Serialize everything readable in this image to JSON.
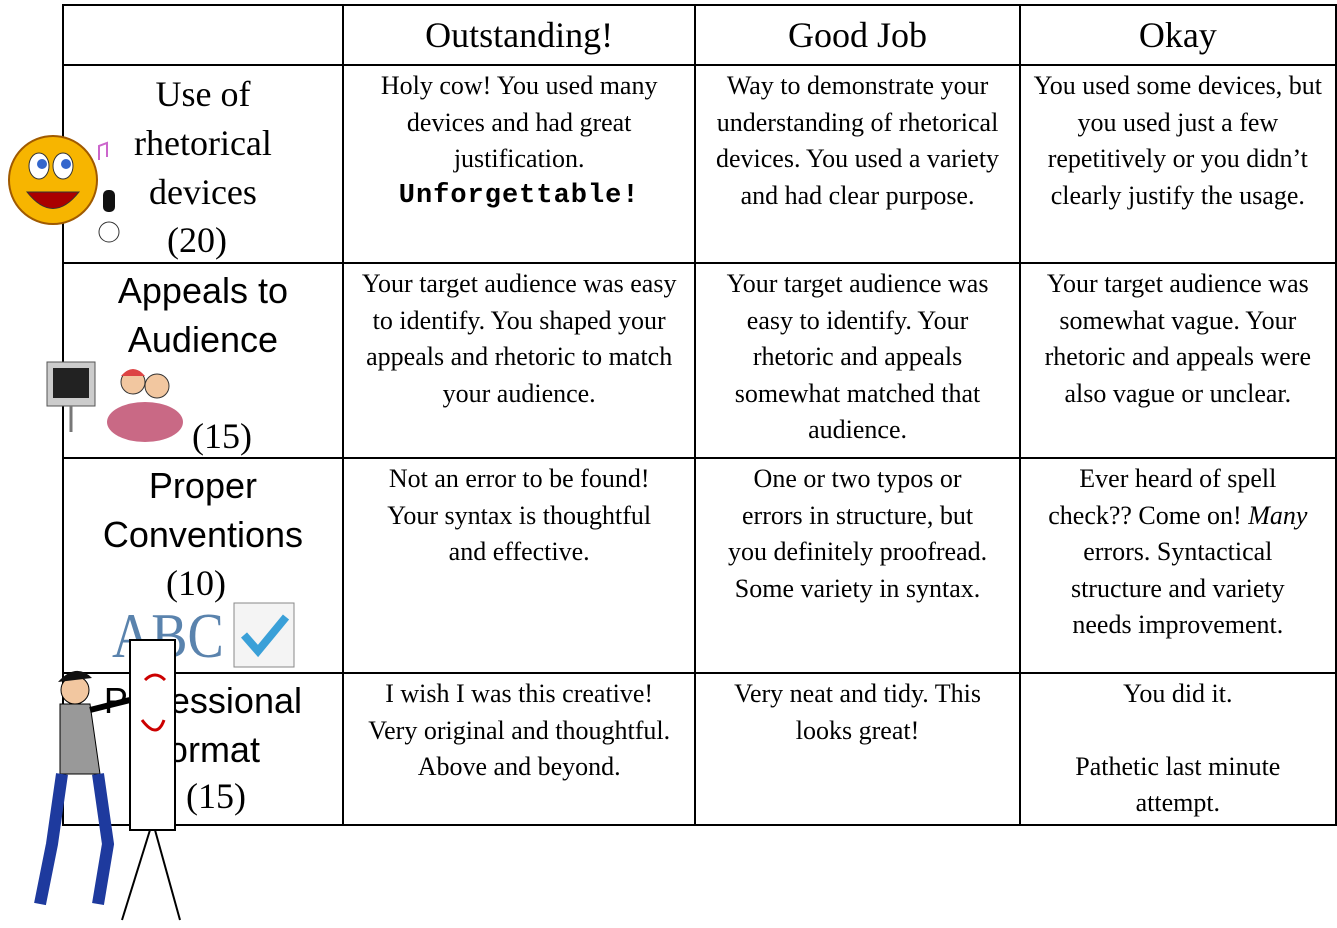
{
  "table": {
    "columns": [
      "Outstanding!",
      "Good Job",
      "Okay"
    ],
    "rows": [
      {
        "label": "Use of rhetorical devices",
        "score": "(20)",
        "cells": [
          [
            "Holy cow! You used many devices and had great justification.",
            "Unforgettable!"
          ],
          [
            "Way to demonstrate your understanding of rhetorical devices. You used a variety and had clear purpose."
          ],
          [
            "You used some devices, but you used just a few repetitively or you didn’t clearly justify the usage."
          ]
        ]
      },
      {
        "label": "Appeals to Audience",
        "score": "(15)",
        "cells": [
          [
            "Your target audience was easy to identify. You shaped your appeals and rhetoric to match your audience."
          ],
          [
            "Your target audience was easy to identify. Your rhetoric and appeals somewhat matched that audience."
          ],
          [
            "Your target audience was somewhat vague. Your rhetoric and appeals were also vague or unclear."
          ]
        ]
      },
      {
        "label": "Proper Conventions",
        "score": "(10)",
        "cells": [
          [
            "Not an error to be found! Your syntax is thoughtful and effective."
          ],
          [
            "One or two typos or errors in structure, but you definitely proofread. Some variety in syntax."
          ],
          [
            "Ever heard of spell check?? Come on!",
            "Many",
            "errors. Syntactical structure and variety needs improvement."
          ]
        ]
      },
      {
        "label": "Professional Format",
        "score": "(15)",
        "cells": [
          [
            "I wish I was this creative! Very original and thoughtful. Above and beyond."
          ],
          [
            "Very neat and tidy. This looks great!"
          ],
          [
            "You did it.",
            "Pathetic last minute attempt."
          ]
        ]
      }
    ]
  }
}
